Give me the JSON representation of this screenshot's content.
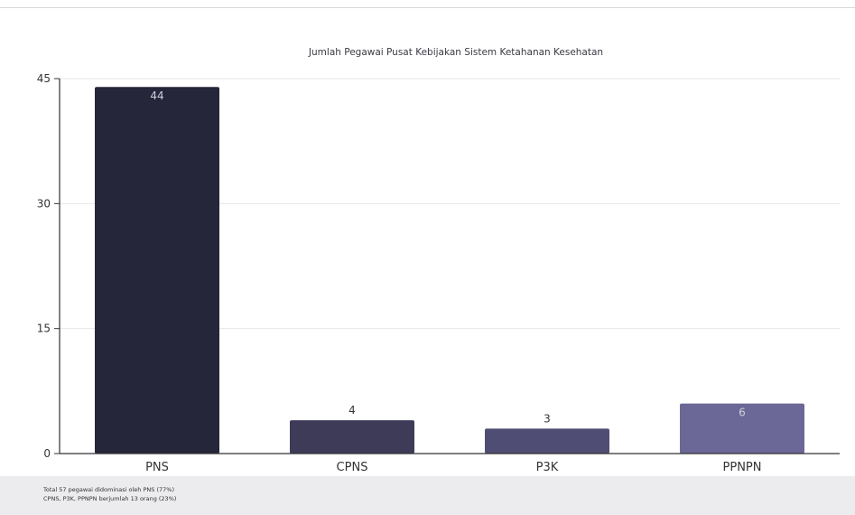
{
  "chart_data": {
    "type": "bar",
    "title": "Jumlah Pegawai Pusat Kebijakan Sistem Ketahanan Kesehatan",
    "xlabel": "",
    "ylabel": "",
    "categories": [
      "PNS",
      "CPNS",
      "P3K",
      "PPNPN"
    ],
    "values": [
      44,
      4,
      3,
      6
    ],
    "ylim": [
      0,
      45
    ],
    "yticks": [
      "0",
      "15",
      "30",
      "45"
    ],
    "data_labels": [
      "44",
      "4",
      "3",
      "6"
    ],
    "bar_colors": [
      "#26263a",
      "#3d3b58",
      "#4f4d73",
      "#6b6897"
    ],
    "grid": true,
    "legend": "none"
  },
  "footer": {
    "line1": "Total 57 pegawai didominasi oleh PNS (77%)",
    "line2": "CPNS, P3K, PPNPN berjumlah 13 orang (23%)"
  },
  "colors": {
    "gridline": "#e6e6ea",
    "axis": "#333333",
    "label_inside": "#cfcfd8",
    "label_outside": "#333333"
  }
}
